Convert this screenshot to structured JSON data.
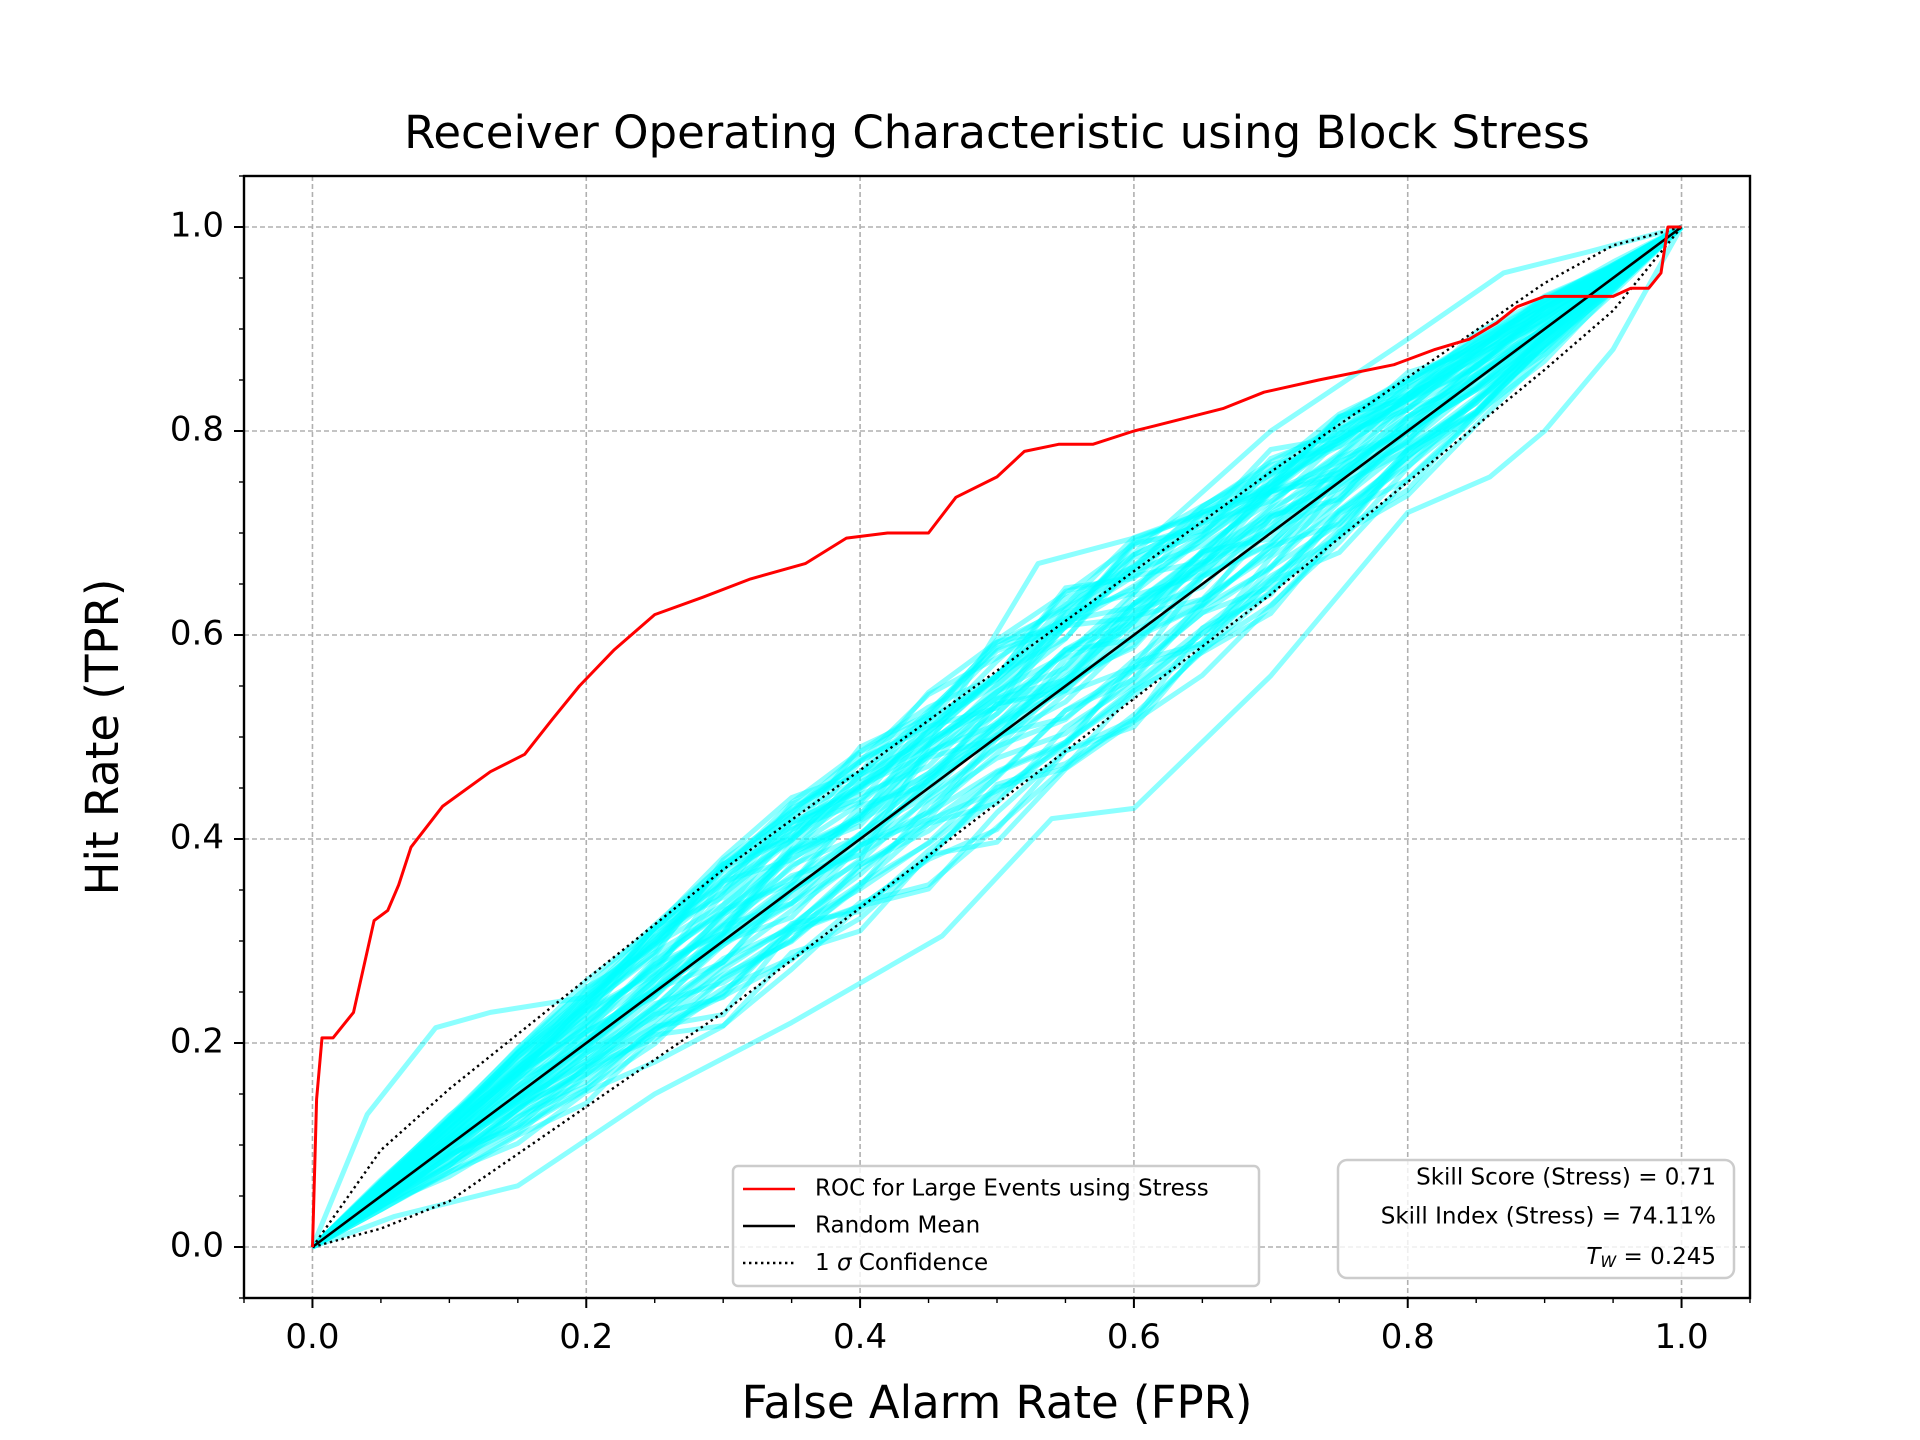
{
  "chart_data": {
    "type": "line",
    "title": "Receiver Operating Characteristic using Block Stress",
    "xlabel": "False Alarm Rate (FPR)",
    "ylabel": "Hit Rate (TPR)",
    "xlim": [
      -0.05,
      1.05
    ],
    "ylim": [
      -0.05,
      1.05
    ],
    "xticks": [
      "0.0",
      "0.2",
      "0.4",
      "0.6",
      "0.8",
      "1.0"
    ],
    "yticks": [
      "0.0",
      "0.2",
      "0.4",
      "0.6",
      "0.8",
      "1.0"
    ],
    "xtick_values": [
      0,
      0.2,
      0.4,
      0.6,
      0.8,
      1.0
    ],
    "ytick_values": [
      0,
      0.2,
      0.4,
      0.6,
      0.8,
      1.0
    ],
    "grid": true,
    "legend_position": "bottom-center",
    "series": [
      {
        "name": "ROC for Large Events using Stress",
        "color": "#ff0000",
        "style": "solid",
        "x": [
          0,
          0.003,
          0.007,
          0.015,
          0.03,
          0.045,
          0.055,
          0.063,
          0.072,
          0.095,
          0.13,
          0.155,
          0.175,
          0.195,
          0.22,
          0.25,
          0.285,
          0.32,
          0.36,
          0.39,
          0.42,
          0.45,
          0.47,
          0.5,
          0.52,
          0.545,
          0.57,
          0.6,
          0.615,
          0.665,
          0.695,
          0.735,
          0.79,
          0.82,
          0.845,
          0.865,
          0.88,
          0.9,
          0.95,
          0.963,
          0.976,
          0.985,
          0.99,
          1.0
        ],
        "y": [
          0,
          0.145,
          0.205,
          0.205,
          0.23,
          0.32,
          0.33,
          0.355,
          0.392,
          0.432,
          0.466,
          0.483,
          0.517,
          0.55,
          0.585,
          0.62,
          0.637,
          0.655,
          0.67,
          0.695,
          0.7,
          0.7,
          0.735,
          0.755,
          0.78,
          0.787,
          0.787,
          0.8,
          0.805,
          0.822,
          0.838,
          0.85,
          0.865,
          0.88,
          0.89,
          0.906,
          0.922,
          0.932,
          0.932,
          0.94,
          0.94,
          0.955,
          1.0,
          1.0
        ]
      },
      {
        "name": "Random Mean",
        "color": "#000000",
        "style": "solid",
        "x": [
          0,
          1
        ],
        "y": [
          0,
          1
        ]
      },
      {
        "name": "1 σ Confidence",
        "color": "#000000",
        "style": "dotted",
        "band_upper": {
          "x": [
            0,
            0.05,
            0.1,
            0.3,
            0.5,
            0.7,
            0.9,
            0.95,
            1.0
          ],
          "y": [
            0,
            0.095,
            0.155,
            0.37,
            0.565,
            0.76,
            0.945,
            0.982,
            1.0
          ]
        },
        "band_lower": {
          "x": [
            0,
            0.05,
            0.1,
            0.3,
            0.5,
            0.7,
            0.9,
            0.95,
            1.0
          ],
          "y": [
            0,
            0.018,
            0.045,
            0.23,
            0.435,
            0.64,
            0.86,
            0.918,
            1.0
          ]
        }
      }
    ],
    "random_curves": {
      "color": "#00ffff",
      "opacity": 0.45,
      "count": 60,
      "highlight": [
        {
          "x": [
            0,
            0.04,
            0.09,
            0.13,
            0.2,
            0.3,
            0.4,
            0.5,
            0.6,
            0.7,
            0.8,
            0.87,
            0.93,
            1.0
          ],
          "y": [
            0,
            0.13,
            0.215,
            0.23,
            0.245,
            0.35,
            0.45,
            0.56,
            0.68,
            0.8,
            0.89,
            0.955,
            0.975,
            1.0
          ]
        },
        {
          "x": [
            0,
            0.06,
            0.15,
            0.25,
            0.35,
            0.46,
            0.54,
            0.6,
            0.7,
            0.8,
            0.86,
            0.9,
            0.95,
            1.0
          ],
          "y": [
            0,
            0.03,
            0.06,
            0.15,
            0.22,
            0.305,
            0.42,
            0.43,
            0.56,
            0.72,
            0.755,
            0.8,
            0.88,
            1.0
          ]
        },
        {
          "x": [
            0,
            0.1,
            0.2,
            0.3,
            0.4,
            0.53,
            0.6,
            0.7,
            0.8,
            0.9,
            1.0
          ],
          "y": [
            0,
            0.08,
            0.19,
            0.28,
            0.38,
            0.67,
            0.695,
            0.74,
            0.8,
            0.88,
            1.0
          ]
        }
      ]
    },
    "info_box": {
      "position": "bottom-right",
      "lines": [
        "Skill Score (Stress) = 0.71",
        "Skill Index (Stress) = 74.11%",
        "T_W = 0.245"
      ]
    }
  },
  "info": {
    "skill_score": "Skill Score (Stress) = 0.71",
    "skill_index": "Skill Index (Stress) = 74.11%",
    "tw_symbol": "T",
    "tw_sub": "W",
    "tw_value": " = 0.245"
  },
  "legend": {
    "roc_label": "ROC for Large Events using Stress",
    "random_label": "Random Mean",
    "conf_prefix": "1 ",
    "conf_sigma": "σ",
    "conf_suffix": " Confidence"
  }
}
